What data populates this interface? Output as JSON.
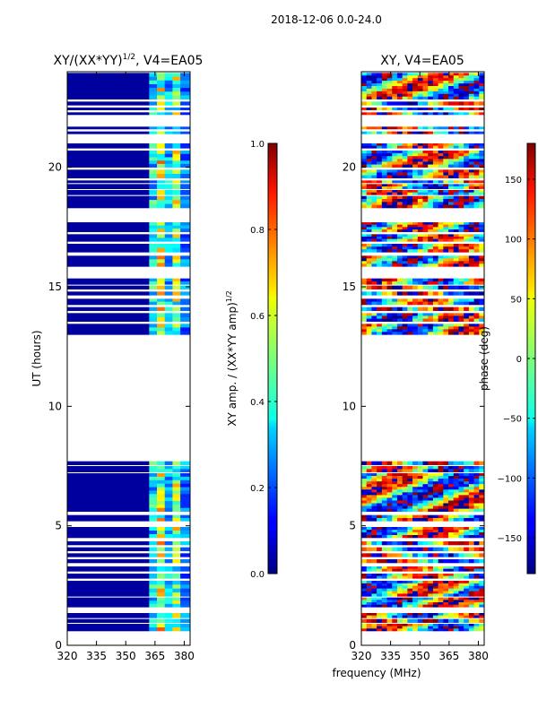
{
  "suptitle": "2018-12-06 0.0-24.0",
  "chart_data": [
    {
      "type": "heatmap",
      "title_main": "XY/(XX*YY)",
      "title_sup": "1/2",
      "title_tail": ", V4=EA05",
      "ylabel": "UT (hours)",
      "xlabel": "",
      "xlim": [
        320,
        383
      ],
      "ylim": [
        0,
        24
      ],
      "xticks": [
        320,
        335,
        350,
        365,
        380
      ],
      "yticks": [
        0,
        5,
        10,
        15,
        20
      ],
      "colorbar": {
        "label_main": "XY amp. / (XX*YY amp)",
        "label_sup": "1/2",
        "range": [
          0.0,
          1.0
        ],
        "ticks": [
          "0.0",
          "0.2",
          "0.4",
          "0.6",
          "0.8",
          "1.0"
        ],
        "tick_values": [
          0.0,
          0.2,
          0.4,
          0.6,
          0.8,
          1.0
        ],
        "colormap": "jet"
      },
      "data_segments_hours": [
        [
          0.6,
          0.9
        ],
        [
          0.95,
          1.1
        ],
        [
          1.15,
          1.35
        ],
        [
          1.6,
          2.0
        ],
        [
          2.05,
          2.7
        ],
        [
          2.8,
          3.0
        ],
        [
          3.1,
          3.3
        ],
        [
          3.45,
          3.6
        ],
        [
          3.7,
          3.85
        ],
        [
          3.95,
          4.1
        ],
        [
          4.2,
          4.35
        ],
        [
          4.5,
          4.95
        ],
        [
          5.2,
          5.45
        ],
        [
          5.6,
          7.2
        ],
        [
          7.25,
          7.5
        ],
        [
          7.55,
          7.7
        ],
        [
          13.0,
          13.45
        ],
        [
          13.55,
          13.9
        ],
        [
          14.0,
          14.15
        ],
        [
          14.25,
          14.5
        ],
        [
          14.65,
          14.8
        ],
        [
          14.9,
          15.05
        ],
        [
          15.1,
          15.35
        ],
        [
          15.85,
          16.3
        ],
        [
          16.45,
          16.8
        ],
        [
          16.9,
          17.2
        ],
        [
          17.3,
          17.7
        ],
        [
          18.3,
          18.8
        ],
        [
          18.85,
          19.05
        ],
        [
          19.1,
          19.3
        ],
        [
          19.35,
          19.45
        ],
        [
          19.55,
          19.9
        ],
        [
          20.0,
          20.7
        ],
        [
          20.8,
          21.0
        ],
        [
          21.4,
          21.5
        ],
        [
          21.6,
          21.7
        ],
        [
          22.2,
          22.3
        ],
        [
          22.4,
          22.5
        ],
        [
          22.6,
          22.75
        ],
        [
          22.85,
          23.95
        ]
      ],
      "band_profile": [
        {
          "from_mhz": 320,
          "to_mhz": 362,
          "level": 0.03
        },
        {
          "from_mhz": 362,
          "to_mhz": 366,
          "level": 0.35
        },
        {
          "from_mhz": 366,
          "to_mhz": 370,
          "level": 0.55
        },
        {
          "from_mhz": 370,
          "to_mhz": 374,
          "level": 0.3
        },
        {
          "from_mhz": 374,
          "to_mhz": 378,
          "level": 0.5
        },
        {
          "from_mhz": 378,
          "to_mhz": 383,
          "level": 0.25
        }
      ]
    },
    {
      "type": "heatmap",
      "title_main": "XY, V4=EA05",
      "title_sup": "",
      "title_tail": "",
      "ylabel": "",
      "xlabel": "frequency (MHz)",
      "xlim": [
        320,
        383
      ],
      "ylim": [
        0,
        24
      ],
      "xticks": [
        320,
        335,
        350,
        365,
        380
      ],
      "yticks": [
        0,
        5,
        10,
        15,
        20
      ],
      "colorbar": {
        "label_main": "phase (deg)",
        "label_sup": "",
        "range": [
          -180,
          180
        ],
        "ticks": [
          "−150",
          "−100",
          "−50",
          "0",
          "50",
          "100",
          "150"
        ],
        "tick_values": [
          -150,
          -100,
          -50,
          0,
          50,
          100,
          150
        ],
        "colormap": "jet"
      },
      "data_segments_hours": [
        [
          0.6,
          0.9
        ],
        [
          0.95,
          1.1
        ],
        [
          1.15,
          1.35
        ],
        [
          1.6,
          2.0
        ],
        [
          2.05,
          2.7
        ],
        [
          2.8,
          3.0
        ],
        [
          3.1,
          3.3
        ],
        [
          3.45,
          3.6
        ],
        [
          3.7,
          3.85
        ],
        [
          3.95,
          4.1
        ],
        [
          4.2,
          4.35
        ],
        [
          4.5,
          4.95
        ],
        [
          5.2,
          5.45
        ],
        [
          5.6,
          7.2
        ],
        [
          7.25,
          7.5
        ],
        [
          7.55,
          7.7
        ],
        [
          13.0,
          13.45
        ],
        [
          13.55,
          13.9
        ],
        [
          14.0,
          14.15
        ],
        [
          14.25,
          14.5
        ],
        [
          14.65,
          14.8
        ],
        [
          14.9,
          15.05
        ],
        [
          15.1,
          15.35
        ],
        [
          15.85,
          16.3
        ],
        [
          16.45,
          16.8
        ],
        [
          16.9,
          17.2
        ],
        [
          17.3,
          17.7
        ],
        [
          18.3,
          18.8
        ],
        [
          18.85,
          19.05
        ],
        [
          19.1,
          19.3
        ],
        [
          19.35,
          19.45
        ],
        [
          19.55,
          19.9
        ],
        [
          20.0,
          20.7
        ],
        [
          20.8,
          21.0
        ],
        [
          21.4,
          21.5
        ],
        [
          21.6,
          21.7
        ],
        [
          22.2,
          22.3
        ],
        [
          22.4,
          22.5
        ],
        [
          22.6,
          22.75
        ],
        [
          22.85,
          23.95
        ]
      ]
    }
  ]
}
